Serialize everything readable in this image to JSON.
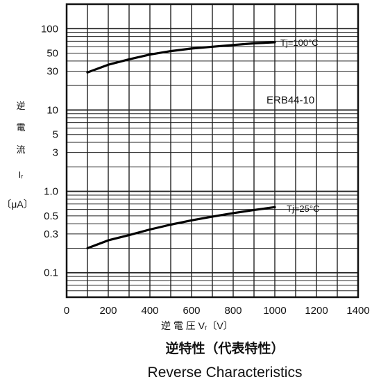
{
  "chart_data": {
    "type": "line",
    "title": "逆特性（代表特性）",
    "subtitle": "Reverse Characteristics",
    "model_label": "ERB44-10",
    "xlabel": "逆 電 圧  Vᵣ〔V〕",
    "ylabel_lines": [
      "逆",
      "電",
      "流",
      "Iᵣ",
      "〔μA〕"
    ],
    "x_ticks": [
      "0",
      "200",
      "400",
      "600",
      "800",
      "1000",
      "1200",
      "1400"
    ],
    "x_tick_values": [
      0,
      200,
      400,
      600,
      800,
      1000,
      1200,
      1400
    ],
    "y_tick_labels": [
      "100",
      "50",
      "30",
      "10",
      "5",
      "3",
      "1.0",
      "0.5",
      "0.3",
      "0.1"
    ],
    "y_tick_values": [
      100,
      50,
      30,
      10,
      5,
      3,
      1,
      0.5,
      0.3,
      0.1
    ],
    "xlim": [
      0,
      1400
    ],
    "ylim": [
      0.05,
      200
    ],
    "yscale": "log",
    "grid": true,
    "series": [
      {
        "name": "Tj=100°C",
        "x": [
          100,
          200,
          300,
          400,
          500,
          600,
          700,
          800,
          900,
          1000
        ],
        "y": [
          29,
          36,
          42,
          48,
          53,
          57,
          60,
          63,
          66,
          68
        ]
      },
      {
        "name": "Tj=25°C",
        "x": [
          100,
          200,
          300,
          400,
          500,
          600,
          700,
          800,
          900,
          1000
        ],
        "y": [
          0.2,
          0.25,
          0.29,
          0.34,
          0.39,
          0.44,
          0.49,
          0.54,
          0.59,
          0.64
        ]
      }
    ]
  }
}
